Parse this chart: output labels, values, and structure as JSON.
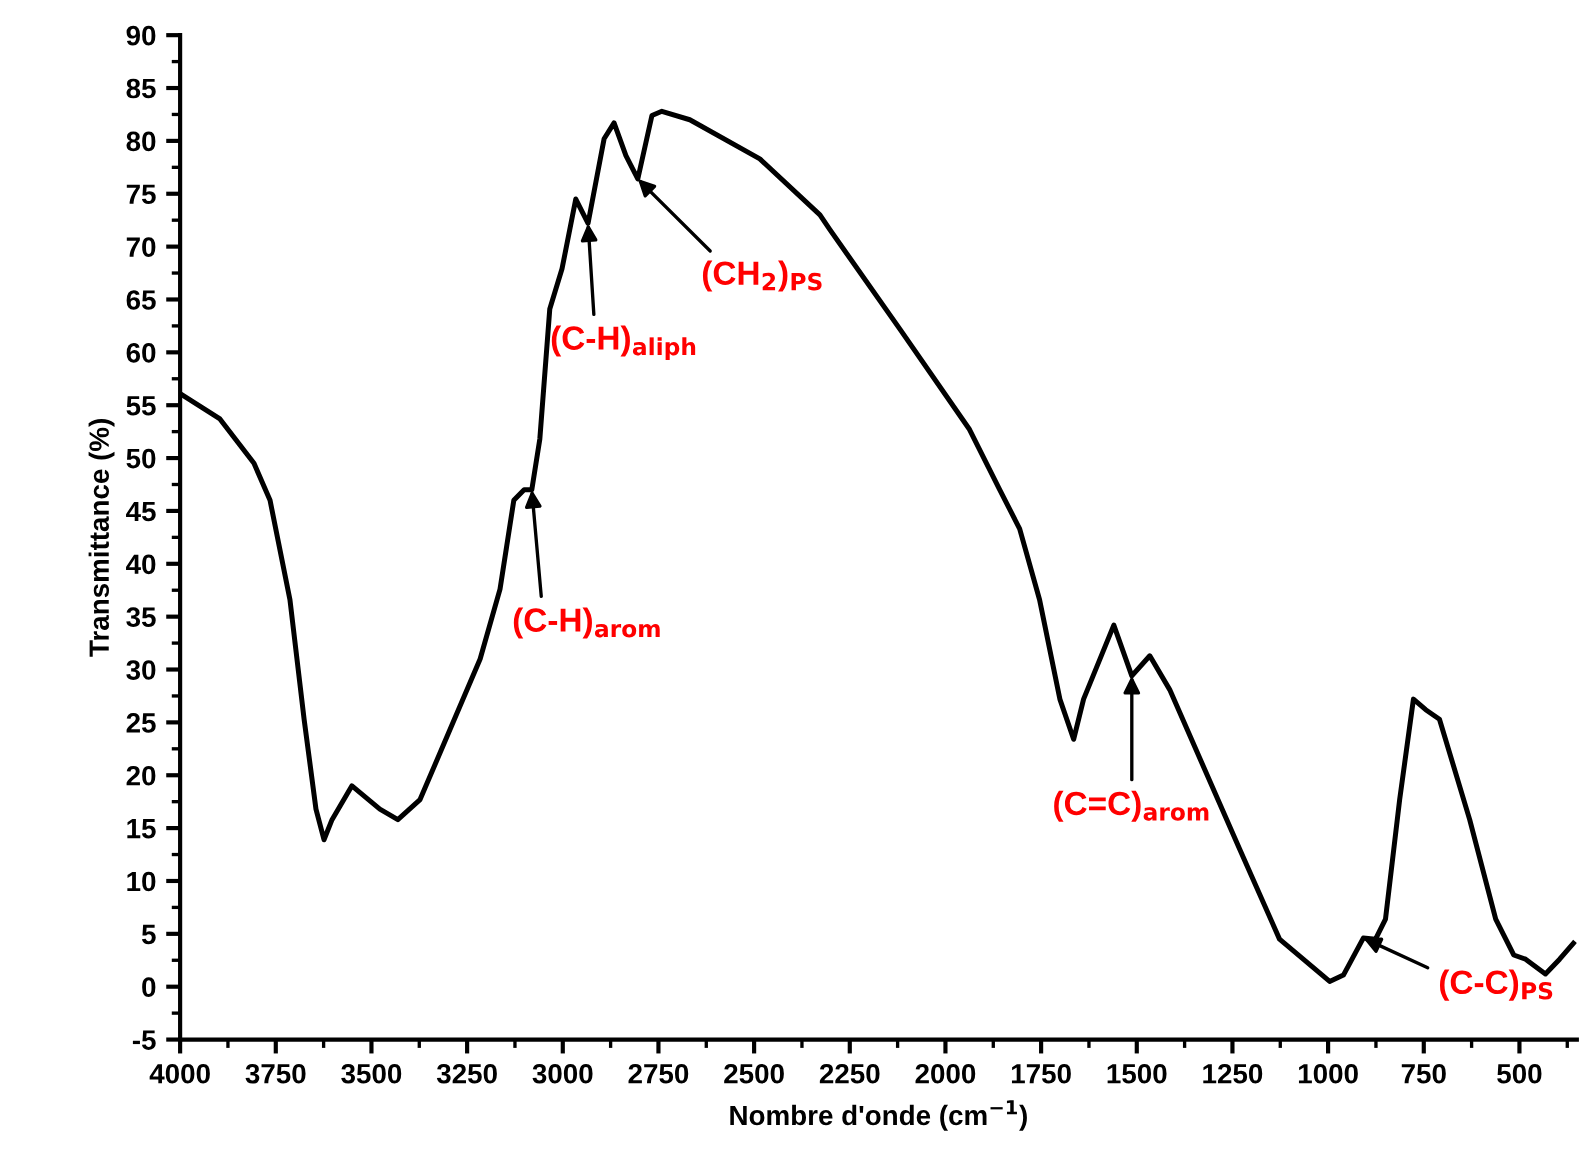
{
  "chart_data": {
    "type": "line",
    "xlabel": "Nombre d'onde (cm$^{−1}$)",
    "ylabel": "Transmittance (%)",
    "series": [
      {
        "color": "#000000",
        "x": [
          4000,
          3896,
          3807,
          3765,
          3713,
          3676,
          3645,
          3624,
          3603,
          3551,
          3478,
          3431,
          3373,
          3295,
          3216,
          3164,
          3128,
          3101,
          3081,
          3060,
          3034,
          3002,
          2966,
          2934,
          2892,
          2866,
          2835,
          2804,
          2767,
          2741,
          2668,
          2485,
          2328,
          2302,
          2119,
          1937,
          1858,
          1806,
          1754,
          1701,
          1665,
          1639,
          1560,
          1513,
          1466,
          1414,
          1231,
          1127,
          996,
          960,
          908,
          876,
          850,
          813,
          777,
          745,
          709,
          630,
          562,
          515,
          484,
          432,
          395,
          359
        ],
        "values": [
          56.1,
          53.7,
          49.5,
          46,
          36.6,
          25.3,
          16.8,
          13.9,
          15.8,
          19,
          16.8,
          15.8,
          17.7,
          24.3,
          31,
          37.6,
          46,
          47,
          47,
          51.8,
          64.1,
          67.9,
          74.5,
          72.2,
          80.2,
          81.7,
          78.6,
          76.4,
          82.4,
          82.8,
          82,
          78.3,
          73,
          71.6,
          62.2,
          52.7,
          47,
          43.3,
          36.6,
          27.2,
          23.4,
          27.2,
          34.2,
          29.4,
          31.3,
          28.1,
          13,
          4.5,
          0.5,
          1.1,
          4.6,
          4.5,
          6.4,
          17.7,
          27.2,
          26.2,
          25.3,
          15.8,
          6.4,
          3,
          2.6,
          1.2,
          2.6,
          4.1
        ]
      }
    ],
    "xlim": [
      4000,
      350
    ],
    "ylim": [
      -5,
      90
    ],
    "xticks": [
      4000,
      3750,
      3500,
      3250,
      3000,
      2750,
      2500,
      2250,
      2000,
      1750,
      1500,
      1250,
      1000,
      750,
      500
    ],
    "yticks": [
      -5,
      0,
      5,
      10,
      15,
      20,
      25,
      30,
      35,
      40,
      45,
      50,
      55,
      60,
      65,
      70,
      75,
      80,
      85,
      90
    ],
    "grid": false,
    "legend": false,
    "marker": "none",
    "line_style": "solid",
    "annotations": [
      {
        "text": "(C-H)$_{arom}$",
        "x": 3081,
        "y": 47
      },
      {
        "text": "(C-H)$_{aliph}$",
        "x": 2934,
        "y": 72.2
      },
      {
        "text": "(CH$_{2}$)$_{PS}$",
        "x": 2804,
        "y": 76.4
      },
      {
        "text": "(C=C)$_{arom}$",
        "x": 1513,
        "y": 29.4
      },
      {
        "text": "(C-C)$_{PS}$",
        "x": 908,
        "y": 4.6
      }
    ]
  }
}
